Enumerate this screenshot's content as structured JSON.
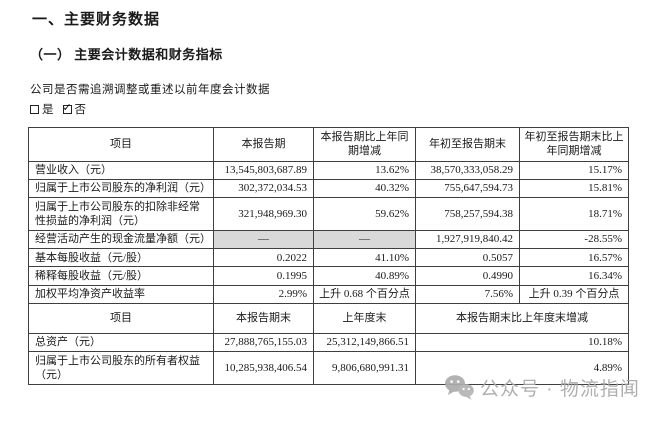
{
  "page": {
    "title": "一、主要财务数据",
    "subtitle": "（一） 主要会计数据和财务指标",
    "note": "公司是否需追溯调整或重述以前年度会计数据"
  },
  "checkboxes": {
    "yes": {
      "label": "是",
      "checked": false
    },
    "no": {
      "label": "否",
      "checked": true
    }
  },
  "colors": {
    "cell_shade": "#d9d9d9",
    "table_border": "#3f3f3f",
    "watermark_gray": "#a9a9a9",
    "text": "#1a1a1a"
  },
  "watermark": {
    "icon": "wechat-icon",
    "text": "公众号 · 物流指闻"
  },
  "table": {
    "sections": [
      {
        "header": [
          {
            "text": "项目"
          },
          {
            "text": "本报告期"
          },
          {
            "text": "本报告期比上年同期增减"
          },
          {
            "text": "年初至报告期末"
          },
          {
            "text": "年初至报告期末比上年同期增减"
          }
        ],
        "rows": [
          {
            "cells": [
              {
                "text": "营业收入（元）",
                "align": "left"
              },
              {
                "text": "13,545,803,687.89",
                "align": "right"
              },
              {
                "text": "13.62%",
                "align": "right"
              },
              {
                "text": "38,570,333,058.29",
                "align": "right"
              },
              {
                "text": "15.17%",
                "align": "right"
              }
            ]
          },
          {
            "cells": [
              {
                "text": "归属于上市公司股东的净利润（元）",
                "align": "left"
              },
              {
                "text": "302,372,034.53",
                "align": "right"
              },
              {
                "text": "40.32%",
                "align": "right"
              },
              {
                "text": "755,647,594.73",
                "align": "right"
              },
              {
                "text": "15.81%",
                "align": "right"
              }
            ]
          },
          {
            "cells": [
              {
                "text": "归属于上市公司股东的扣除非经常性损益的净利润（元）",
                "align": "left"
              },
              {
                "text": "321,948,969.30",
                "align": "right"
              },
              {
                "text": "59.62%",
                "align": "right"
              },
              {
                "text": "758,257,594.38",
                "align": "right"
              },
              {
                "text": "18.71%",
                "align": "right"
              }
            ]
          },
          {
            "cells": [
              {
                "text": "经营活动产生的现金流量净额（元）",
                "align": "left"
              },
              {
                "text": "—",
                "align": "center",
                "shaded": true
              },
              {
                "text": "—",
                "align": "center",
                "shaded": true
              },
              {
                "text": "1,927,919,840.42",
                "align": "right"
              },
              {
                "text": "-28.55%",
                "align": "right"
              }
            ]
          },
          {
            "cells": [
              {
                "text": "基本每股收益（元/股）",
                "align": "left"
              },
              {
                "text": "0.2022",
                "align": "right"
              },
              {
                "text": "41.10%",
                "align": "right"
              },
              {
                "text": "0.5057",
                "align": "right"
              },
              {
                "text": "16.57%",
                "align": "right"
              }
            ]
          },
          {
            "cells": [
              {
                "text": "稀释每股收益（元/股）",
                "align": "left"
              },
              {
                "text": "0.1995",
                "align": "right"
              },
              {
                "text": "40.89%",
                "align": "right"
              },
              {
                "text": "0.4990",
                "align": "right"
              },
              {
                "text": "16.34%",
                "align": "right"
              }
            ]
          },
          {
            "cells": [
              {
                "text": "加权平均净资产收益率",
                "align": "left"
              },
              {
                "text": "2.99%",
                "align": "right"
              },
              {
                "text": "上升 0.68 个百分点",
                "align": "center"
              },
              {
                "text": "7.56%",
                "align": "right"
              },
              {
                "text": "上升 0.39 个百分点",
                "align": "center"
              }
            ]
          }
        ]
      },
      {
        "header": [
          {
            "text": "项目"
          },
          {
            "text": "本报告期末"
          },
          {
            "text": "上年度末"
          },
          {
            "text": "本报告期末比上年度末增减",
            "colspan": 2
          }
        ],
        "rows": [
          {
            "cells": [
              {
                "text": "总资产（元）",
                "align": "left"
              },
              {
                "text": "27,888,765,155.03",
                "align": "right"
              },
              {
                "text": "25,312,149,866.51",
                "align": "right"
              },
              {
                "text": "10.18%",
                "align": "right",
                "colspan": 2
              }
            ]
          },
          {
            "cells": [
              {
                "text": "归属于上市公司股东的所有者权益（元）",
                "align": "left"
              },
              {
                "text": "10,285,938,406.54",
                "align": "right"
              },
              {
                "text": "9,806,680,991.31",
                "align": "right"
              },
              {
                "text": "4.89%",
                "align": "right",
                "colspan": 2
              }
            ]
          }
        ]
      }
    ]
  }
}
